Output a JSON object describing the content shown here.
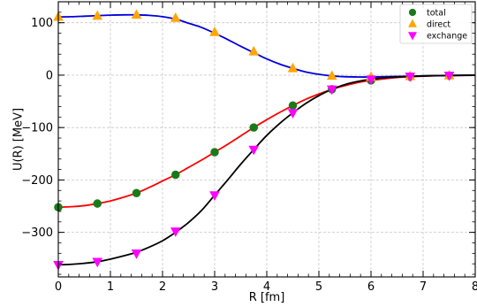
{
  "chart_data": {
    "type": "line",
    "title": "",
    "xlabel": "R [fm]",
    "ylabel": "U(R) [MeV]",
    "xlim": [
      0,
      8
    ],
    "ylim": [
      -385,
      140
    ],
    "x_ticks": [
      0,
      1,
      2,
      3,
      4,
      5,
      6,
      7,
      8
    ],
    "y_ticks": [
      -300,
      -200,
      -100,
      0,
      100
    ],
    "x_tick_labels": [
      "0",
      "1",
      "2",
      "3",
      "4",
      "5",
      "6",
      "7",
      "8"
    ],
    "y_tick_labels": [
      "−300",
      "−200",
      "−100",
      "0",
      "100"
    ],
    "grid": true,
    "legend_position": "top-right",
    "x": [
      0,
      0.25,
      0.5,
      0.75,
      1.0,
      1.25,
      1.5,
      1.75,
      2.0,
      2.25,
      2.5,
      2.75,
      3.0,
      3.25,
      3.5,
      3.75,
      4.0,
      4.25,
      4.5,
      4.75,
      5.0,
      5.25,
      5.5,
      5.75,
      6.0,
      6.25,
      6.5,
      6.75,
      7.0,
      7.25,
      7.5,
      7.75,
      8.0
    ],
    "series": [
      {
        "name": "total",
        "color": "#ff0000",
        "marker_color": "#1a7a1a",
        "marker": "circle",
        "values": [
          -252,
          -251,
          -249,
          -245,
          -240,
          -233,
          -225,
          -214,
          -202,
          -190,
          -176,
          -162,
          -147,
          -132,
          -116,
          -100,
          -85,
          -71,
          -58,
          -46,
          -36,
          -27,
          -20,
          -14,
          -10,
          -7,
          -4.5,
          -3,
          -2,
          -1.2,
          -0.8,
          -0.5,
          -0.3
        ],
        "marker_x": [
          0,
          0.75,
          1.5,
          2.25,
          3.0,
          3.75,
          4.5,
          5.25,
          6.0,
          6.75,
          7.5
        ],
        "marker_values": [
          -252,
          -245,
          -225,
          -190,
          -147,
          -100,
          -58,
          -27,
          -10,
          -3,
          -0.8
        ]
      },
      {
        "name": "direct",
        "color": "#0000dd",
        "marker_color": "#ffa500",
        "marker": "triangle-up",
        "values": [
          111,
          111.5,
          112.5,
          113.5,
          114.5,
          115,
          115,
          114,
          111.5,
          107,
          99,
          91,
          80,
          68,
          55,
          43,
          31,
          21,
          13,
          6,
          1.5,
          -1.5,
          -3,
          -3.5,
          -3.5,
          -3,
          -2.5,
          -2,
          -1.5,
          -1,
          -0.7,
          -0.4,
          -0.2
        ],
        "marker_x": [
          0,
          0.75,
          1.5,
          2.25,
          3.0,
          3.75,
          4.5,
          5.25,
          6.0,
          6.75,
          7.5
        ],
        "marker_values": [
          111,
          113,
          115,
          109,
          82,
          45,
          13,
          -1.5,
          -3.5,
          -2,
          -0.7
        ]
      },
      {
        "name": "exchange",
        "color": "#000000",
        "marker_color": "#ff00ff",
        "marker": "triangle-down",
        "values": [
          -362,
          -361,
          -359,
          -356,
          -351,
          -345,
          -338,
          -328,
          -316,
          -300,
          -281,
          -258,
          -229,
          -200,
          -170,
          -142,
          -115,
          -92,
          -72,
          -54,
          -39,
          -27,
          -18,
          -12,
          -8,
          -5,
          -3.5,
          -2.5,
          -1.5,
          -1,
          -0.6,
          -0.3,
          -0.2
        ],
        "marker_x": [
          0,
          0.75,
          1.5,
          2.25,
          3.0,
          3.75,
          4.5,
          5.25,
          6.0,
          6.75,
          7.5
        ],
        "marker_values": [
          -362,
          -356,
          -340,
          -298,
          -229,
          -142,
          -72,
          -27,
          -8,
          -2.5,
          -0.6
        ]
      }
    ]
  }
}
